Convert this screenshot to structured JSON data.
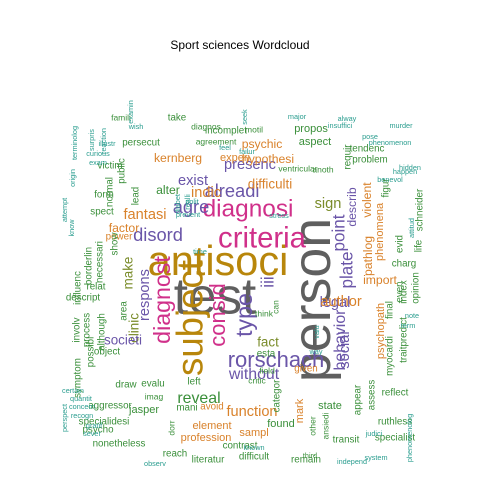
{
  "chart_data": {
    "type": "wordcloud",
    "title": "Sport sciences  Wordcloud",
    "colors": {
      "teal": "#2a9d8f",
      "green": "#3a8f3a",
      "olive": "#7a8c2a",
      "orange": "#d9822b",
      "pink": "#d0308a",
      "purple": "#6a55a8",
      "gold": "#b8860b",
      "gray": "#5f5f5f"
    },
    "words": [
      {
        "text": "person",
        "weight": 44,
        "color": "gray"
      },
      {
        "text": "test",
        "weight": 42,
        "color": "gray"
      },
      {
        "text": "antisoci",
        "weight": 34,
        "color": "gold"
      },
      {
        "text": "subject",
        "weight": 30,
        "color": "gold"
      },
      {
        "text": "criteria",
        "weight": 24,
        "color": "pink"
      },
      {
        "text": "diagnosi",
        "weight": 20,
        "color": "pink"
      },
      {
        "text": "diagnost",
        "weight": 19,
        "color": "pink"
      },
      {
        "text": "type",
        "weight": 19,
        "color": "purple"
      },
      {
        "text": "consid",
        "weight": 18,
        "color": "pink"
      },
      {
        "text": "rorschach",
        "weight": 18,
        "color": "purple"
      },
      {
        "text": "disord",
        "weight": 15,
        "color": "purple"
      },
      {
        "text": "agre",
        "weight": 15,
        "color": "purple"
      },
      {
        "text": "alreadi",
        "weight": 15,
        "color": "purple"
      },
      {
        "text": "iii",
        "weight": 14,
        "color": "purple"
      },
      {
        "text": "point",
        "weight": 14,
        "color": "purple"
      },
      {
        "text": "plate",
        "weight": 14,
        "color": "purple"
      },
      {
        "text": "behavior",
        "weight": 13,
        "color": "purple"
      },
      {
        "text": "without",
        "weight": 13,
        "color": "purple"
      },
      {
        "text": "reveal",
        "weight": 13,
        "color": "green"
      },
      {
        "text": "respons",
        "weight": 12,
        "color": "purple"
      },
      {
        "text": "indic",
        "weight": 12,
        "color": "orange"
      },
      {
        "text": "exist",
        "weight": 12,
        "color": "purple"
      },
      {
        "text": "fantasi",
        "weight": 12,
        "color": "orange"
      },
      {
        "text": "presenc",
        "weight": 12,
        "color": "purple"
      },
      {
        "text": "legal",
        "weight": 12,
        "color": "purple"
      },
      {
        "text": "social",
        "weight": 12,
        "color": "purple"
      },
      {
        "text": "sign",
        "weight": 12,
        "color": "olive"
      },
      {
        "text": "author",
        "weight": 12,
        "color": "orange"
      },
      {
        "text": "function",
        "weight": 12,
        "color": "orange"
      },
      {
        "text": "clinic",
        "weight": 11,
        "color": "olive"
      },
      {
        "text": "societi",
        "weight": 11,
        "color": "purple"
      },
      {
        "text": "fact",
        "weight": 11,
        "color": "olive"
      },
      {
        "text": "difficulti",
        "weight": 11,
        "color": "orange"
      },
      {
        "text": "make",
        "weight": 11,
        "color": "olive"
      },
      {
        "text": "describ",
        "weight": 10,
        "color": "purple"
      },
      {
        "text": "pathlog",
        "weight": 10,
        "color": "orange"
      },
      {
        "text": "violent",
        "weight": 10,
        "color": "orange"
      },
      {
        "text": "hypothesi",
        "weight": 10,
        "color": "orange"
      },
      {
        "text": "psychic",
        "weight": 10,
        "color": "orange"
      },
      {
        "text": "kernberg",
        "weight": 10,
        "color": "orange"
      },
      {
        "text": "factor",
        "weight": 10,
        "color": "orange"
      },
      {
        "text": "import",
        "weight": 10,
        "color": "orange"
      },
      {
        "text": "alter",
        "weight": 10,
        "color": "green"
      },
      {
        "text": "experi",
        "weight": 9,
        "color": "orange"
      },
      {
        "text": "phenomena",
        "weight": 9,
        "color": "orange"
      },
      {
        "text": "psychopath",
        "weight": 9,
        "color": "orange"
      },
      {
        "text": "descript",
        "weight": 8,
        "color": "green"
      },
      {
        "text": "profession",
        "weight": 9,
        "color": "orange"
      },
      {
        "text": "aspect",
        "weight": 9,
        "color": "green"
      },
      {
        "text": "propos",
        "weight": 9,
        "color": "green"
      },
      {
        "text": "incomplet",
        "weight": 8,
        "color": "green"
      },
      {
        "text": "take",
        "weight": 8,
        "color": "green"
      },
      {
        "text": "persecut",
        "weight": 8,
        "color": "green"
      },
      {
        "text": "element",
        "weight": 9,
        "color": "orange"
      },
      {
        "text": "sampl",
        "weight": 9,
        "color": "orange"
      },
      {
        "text": "found",
        "weight": 9,
        "color": "green"
      },
      {
        "text": "jasper",
        "weight": 9,
        "color": "green"
      },
      {
        "text": "mark",
        "weight": 9,
        "color": "orange"
      },
      {
        "text": "state",
        "weight": 9,
        "color": "green"
      },
      {
        "text": "categor",
        "weight": 8,
        "color": "green"
      },
      {
        "text": "appear",
        "weight": 8,
        "color": "green"
      },
      {
        "text": "given",
        "weight": 8,
        "color": "orange"
      },
      {
        "text": "esta",
        "weight": 8,
        "color": "green"
      },
      {
        "text": "assess",
        "weight": 8,
        "color": "green"
      },
      {
        "text": "evalu",
        "weight": 8,
        "color": "green"
      },
      {
        "text": "draw",
        "weight": 8,
        "color": "green"
      },
      {
        "text": "power",
        "weight": 8,
        "color": "orange"
      },
      {
        "text": "show",
        "weight": 8,
        "color": "green"
      },
      {
        "text": "although",
        "weight": 8,
        "color": "green"
      },
      {
        "text": "necessari",
        "weight": 8,
        "color": "green"
      },
      {
        "text": "influenc",
        "weight": 8,
        "color": "green"
      },
      {
        "text": "borderlin",
        "weight": 8,
        "color": "green"
      },
      {
        "text": "normal",
        "weight": 8,
        "color": "green"
      },
      {
        "text": "public",
        "weight": 8,
        "color": "green"
      },
      {
        "text": "victim",
        "weight": 8,
        "color": "green"
      },
      {
        "text": "lead",
        "weight": 8,
        "color": "green"
      },
      {
        "text": "ruthless",
        "weight": 8,
        "color": "green"
      },
      {
        "text": "specialist",
        "weight": 8,
        "color": "green"
      },
      {
        "text": "transit",
        "weight": 8,
        "color": "green"
      },
      {
        "text": "remain",
        "weight": 8,
        "color": "green"
      },
      {
        "text": "difficult",
        "weight": 8,
        "color": "green"
      },
      {
        "text": "literatur",
        "weight": 8,
        "color": "green"
      },
      {
        "text": "reach",
        "weight": 8,
        "color": "green"
      },
      {
        "text": "nonetheless",
        "weight": 8,
        "color": "green"
      },
      {
        "text": "specialidesi",
        "weight": 8,
        "color": "green"
      },
      {
        "text": "psycho",
        "weight": 8,
        "color": "green"
      },
      {
        "text": "aggressor",
        "weight": 8,
        "color": "green"
      },
      {
        "text": "contrast",
        "weight": 8,
        "color": "green"
      },
      {
        "text": "avoid",
        "weight": 8,
        "color": "orange"
      },
      {
        "text": "mani",
        "weight": 8,
        "color": "green"
      },
      {
        "text": "left",
        "weight": 8,
        "color": "green"
      },
      {
        "text": "reflect",
        "weight": 8,
        "color": "green"
      },
      {
        "text": "myocardi",
        "weight": 8,
        "color": "green"
      },
      {
        "text": "traitpredict",
        "weight": 8,
        "color": "green"
      },
      {
        "text": "even",
        "weight": 8,
        "color": "green"
      },
      {
        "text": "index",
        "weight": 8,
        "color": "green"
      },
      {
        "text": "final",
        "weight": 8,
        "color": "green"
      },
      {
        "text": "charg",
        "weight": 8,
        "color": "green"
      },
      {
        "text": "evid",
        "weight": 8,
        "color": "green"
      },
      {
        "text": "life",
        "weight": 8,
        "color": "green"
      },
      {
        "text": "tendenc",
        "weight": 8,
        "color": "green"
      },
      {
        "text": "problem",
        "weight": 8,
        "color": "green"
      },
      {
        "text": "requir",
        "weight": 8,
        "color": "green"
      },
      {
        "text": "figur",
        "weight": 8,
        "color": "green"
      },
      {
        "text": "schneider",
        "weight": 8,
        "color": "green"
      },
      {
        "text": "opinion",
        "weight": 8,
        "color": "green"
      },
      {
        "text": "object",
        "weight": 8,
        "color": "green"
      },
      {
        "text": "area",
        "weight": 8,
        "color": "green"
      },
      {
        "text": "relat",
        "weight": 8,
        "color": "green"
      },
      {
        "text": "process",
        "weight": 8,
        "color": "green"
      },
      {
        "text": "involv",
        "weight": 8,
        "color": "green"
      },
      {
        "text": "possibl",
        "weight": 8,
        "color": "green"
      },
      {
        "text": "symptom",
        "weight": 8,
        "color": "green"
      },
      {
        "text": "form",
        "weight": 8,
        "color": "green"
      },
      {
        "text": "spect",
        "weight": 8,
        "color": "green"
      },
      {
        "text": "diagnos",
        "weight": 7,
        "color": "green"
      },
      {
        "text": "agreement",
        "weight": 7,
        "color": "green"
      },
      {
        "text": "motil",
        "weight": 7,
        "color": "green"
      },
      {
        "text": "ventricular",
        "weight": 7,
        "color": "green"
      },
      {
        "text": "anoth",
        "weight": 7,
        "color": "green"
      },
      {
        "text": "can",
        "weight": 7,
        "color": "green"
      },
      {
        "text": "think",
        "weight": 7,
        "color": "green"
      },
      {
        "text": "field",
        "weight": 7,
        "color": "green"
      },
      {
        "text": "dorr",
        "weight": 7,
        "color": "green"
      },
      {
        "text": "critic",
        "weight": 7,
        "color": "green"
      },
      {
        "text": "third",
        "weight": 6,
        "color": "green"
      },
      {
        "text": "other",
        "weight": 7,
        "color": "green"
      },
      {
        "text": "ansiedi",
        "weight": 7,
        "color": "green"
      },
      {
        "text": "imag",
        "weight": 7,
        "color": "green"
      },
      {
        "text": "famili",
        "weight": 7,
        "color": "green"
      },
      {
        "text": "examin",
        "weight": 6,
        "color": "teal"
      },
      {
        "text": "seek",
        "weight": 6,
        "color": "teal"
      },
      {
        "text": "major",
        "weight": 6,
        "color": "teal"
      },
      {
        "text": "alway",
        "weight": 6,
        "color": "teal"
      },
      {
        "text": "pose",
        "weight": 6,
        "color": "teal"
      },
      {
        "text": "murder",
        "weight": 6,
        "color": "teal"
      },
      {
        "text": "phenomenon",
        "weight": 6,
        "color": "teal"
      },
      {
        "text": "hidden",
        "weight": 6,
        "color": "teal"
      },
      {
        "text": "happen",
        "weight": 6,
        "color": "teal"
      },
      {
        "text": "benevol",
        "weight": 6,
        "color": "teal"
      },
      {
        "text": "prevent",
        "weight": 6,
        "color": "teal"
      },
      {
        "text": "stress",
        "weight": 6,
        "color": "teal"
      },
      {
        "text": "know",
        "weight": 6,
        "color": "teal"
      },
      {
        "text": "illustr",
        "weight": 6,
        "color": "teal"
      },
      {
        "text": "curious",
        "weight": 6,
        "color": "teal"
      },
      {
        "text": "exam",
        "weight": 6,
        "color": "teal"
      },
      {
        "text": "certain",
        "weight": 6,
        "color": "teal"
      },
      {
        "text": "quantit",
        "weight": 6,
        "color": "teal"
      },
      {
        "text": "concern",
        "weight": 6,
        "color": "teal"
      },
      {
        "text": "recogn",
        "weight": 6,
        "color": "teal"
      },
      {
        "text": "gratif",
        "weight": 6,
        "color": "teal"
      },
      {
        "text": "sever",
        "weight": 6,
        "color": "teal"
      },
      {
        "text": "observ",
        "weight": 6,
        "color": "teal"
      },
      {
        "text": "independ",
        "weight": 6,
        "color": "teal"
      },
      {
        "text": "system",
        "weight": 6,
        "color": "teal"
      },
      {
        "text": "judici",
        "weight": 6,
        "color": "teal"
      },
      {
        "text": "known",
        "weight": 6,
        "color": "teal"
      },
      {
        "text": "failur",
        "weight": 6,
        "color": "teal"
      },
      {
        "text": "polit",
        "weight": 6,
        "color": "teal"
      },
      {
        "text": "insuffici",
        "weight": 6,
        "color": "teal"
      },
      {
        "text": "diabet",
        "weight": 6,
        "color": "teal"
      },
      {
        "text": "realli",
        "weight": 6,
        "color": "teal"
      },
      {
        "text": "wish",
        "weight": 6,
        "color": "teal"
      },
      {
        "text": "surpris",
        "weight": 6,
        "color": "teal"
      },
      {
        "text": "reaction",
        "weight": 6,
        "color": "teal"
      },
      {
        "text": "terminolog",
        "weight": 6,
        "color": "teal"
      },
      {
        "text": "origin",
        "weight": 6,
        "color": "teal"
      },
      {
        "text": "attempt",
        "weight": 6,
        "color": "teal"
      },
      {
        "text": "valu",
        "weight": 6,
        "color": "teal"
      },
      {
        "text": "attitud",
        "weight": 6,
        "color": "teal"
      },
      {
        "text": "note",
        "weight": 6,
        "color": "teal"
      },
      {
        "text": "term",
        "weight": 6,
        "color": "teal"
      },
      {
        "text": "way",
        "weight": 6,
        "color": "teal"
      },
      {
        "text": "perspect",
        "weight": 6,
        "color": "teal"
      },
      {
        "text": "phenomenolog",
        "weight": 6,
        "color": "teal"
      },
      {
        "text": "time",
        "weight": 6,
        "color": "teal"
      },
      {
        "text": "feel",
        "weight": 6,
        "color": "teal"
      }
    ]
  }
}
